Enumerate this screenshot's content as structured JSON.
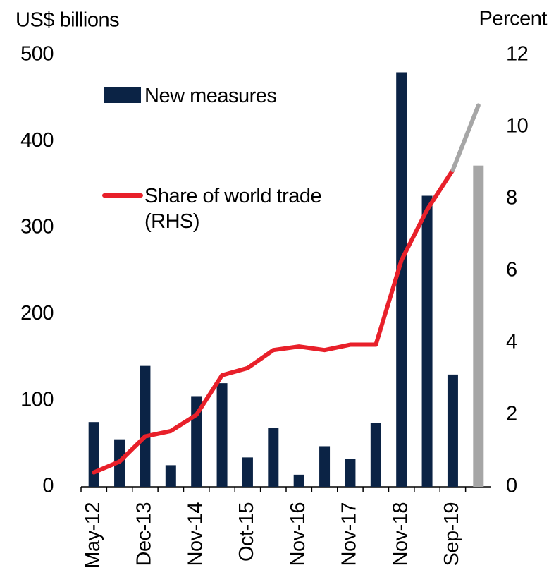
{
  "chart_data": {
    "type": "bar",
    "y_label": "US$ billions",
    "y2_label": "Percent",
    "categories": [
      "May-12",
      null,
      "Dec-13",
      null,
      "Nov-14",
      null,
      "Oct-15",
      null,
      "Nov-16",
      null,
      "Nov-17",
      null,
      "Nov-18",
      null,
      "Sep-19",
      null
    ],
    "series": [
      {
        "name": "New measures",
        "type": "bar",
        "color": "#0b2345",
        "values": [
          75,
          55,
          140,
          25,
          105,
          120,
          34,
          68,
          14,
          47,
          32,
          74,
          480,
          337,
          130,
          null
        ]
      },
      {
        "type": "bar",
        "color": "#a6a6a6",
        "values": [
          null,
          null,
          null,
          null,
          null,
          null,
          null,
          null,
          null,
          null,
          null,
          null,
          null,
          null,
          null,
          372
        ]
      },
      {
        "name": "Share of world trade (RHS)",
        "type": "line",
        "axis": "y2",
        "color": "#e8202a",
        "values": [
          0.4,
          0.7,
          1.4,
          1.55,
          2.0,
          3.1,
          3.3,
          3.8,
          3.9,
          3.8,
          3.95,
          3.95,
          6.3,
          7.7,
          8.8,
          null
        ]
      },
      {
        "type": "line",
        "axis": "y2",
        "color": "#a6a6a6",
        "values": [
          null,
          null,
          null,
          null,
          null,
          null,
          null,
          null,
          null,
          null,
          null,
          null,
          null,
          null,
          8.8,
          10.6
        ]
      }
    ],
    "ylim": [
      0,
      500
    ],
    "yticks": [
      0,
      100,
      200,
      300,
      400,
      500
    ],
    "y2lim": [
      0,
      12
    ],
    "y2ticks": [
      0,
      2,
      4,
      6,
      8,
      10,
      12
    ],
    "grid": false,
    "legend": "top-left"
  }
}
